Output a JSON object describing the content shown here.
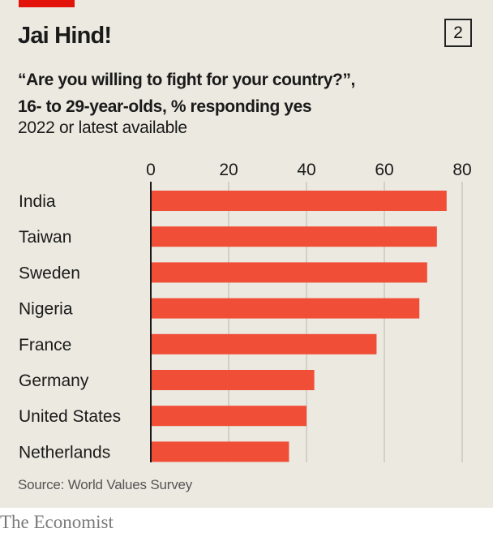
{
  "header": {
    "title": "Jai Hind!",
    "badge": "2",
    "subtitle_line1": "“Are you willing to fight for your country?”,",
    "subtitle_line2": "16- to 29-year-olds, % responding yes",
    "subnote": "2022 or latest available"
  },
  "footer": {
    "source": "Source: World Values Survey",
    "brand": "The Economist"
  },
  "colors": {
    "accent": "#e3120b",
    "bar": "#f04e37",
    "background": "#ebe9e0",
    "gridline": "#c9c7c0",
    "axis": "#1a1a1a"
  },
  "chart_data": {
    "type": "bar",
    "orientation": "horizontal",
    "title": "Jai Hind!",
    "subtitle": "“Are you willing to fight for your country?”, 16- to 29-year-olds, % responding yes",
    "note": "2022 or latest available",
    "xlabel": "",
    "ylabel": "",
    "xlim": [
      0,
      80
    ],
    "ticks": [
      0,
      20,
      40,
      60,
      80
    ],
    "tick_labels": [
      "0",
      "20",
      "40",
      "60",
      "80"
    ],
    "tick_position": "top",
    "grid": true,
    "categories": [
      "India",
      "Taiwan",
      "Sweden",
      "Nigeria",
      "France",
      "Germany",
      "United States",
      "Netherlands"
    ],
    "values": [
      76,
      73.5,
      71,
      69,
      58,
      42,
      40,
      35.5
    ],
    "source": "Source: World Values Survey"
  }
}
